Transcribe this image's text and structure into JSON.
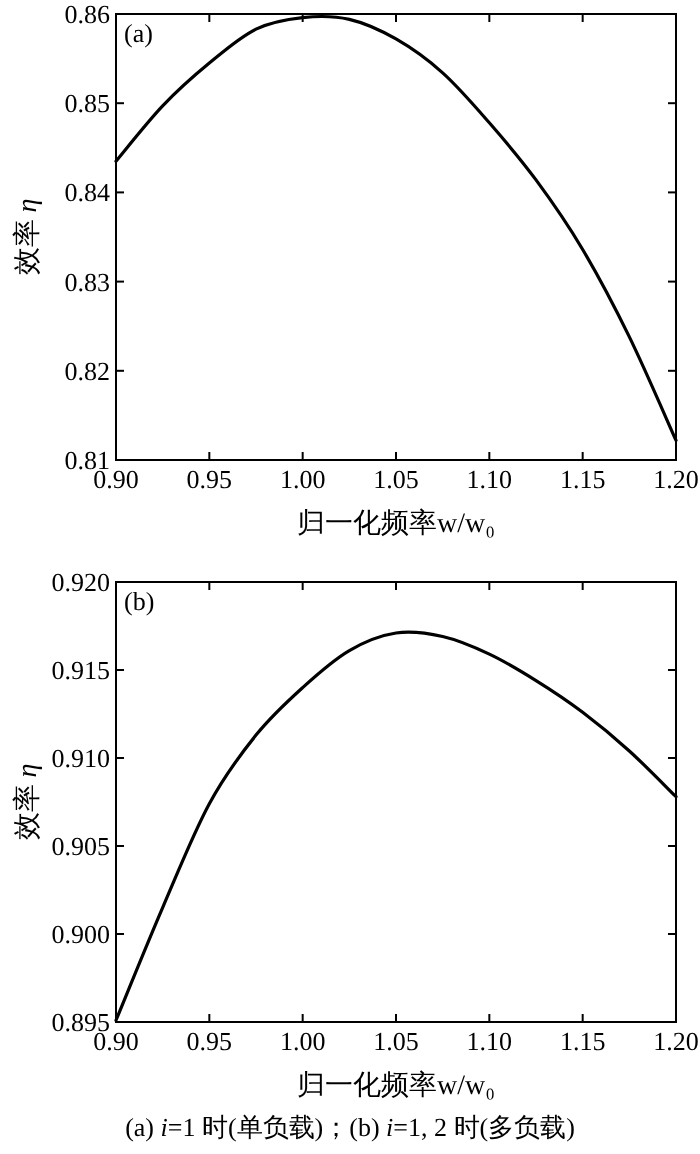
{
  "chart_data": [
    {
      "type": "line",
      "xlabel": "归一化频率w/w₀",
      "ylabel": "效率 *η*",
      "color": "#000000",
      "annotations": [
        "(a)"
      ],
      "x": [
        0.9,
        0.925,
        0.95,
        0.975,
        1.0,
        1.025,
        1.05,
        1.075,
        1.1,
        1.125,
        1.15,
        1.175,
        1.2
      ],
      "values": [
        0.8435,
        0.8497,
        0.8545,
        0.8583,
        0.8596,
        0.8594,
        0.8572,
        0.8534,
        0.8478,
        0.8414,
        0.8336,
        0.8238,
        0.8122
      ],
      "xlim": [
        0.9,
        1.2
      ],
      "ylim": [
        0.81,
        0.86
      ],
      "xticks": [
        {
          "value": 0.9,
          "label": "0.90"
        },
        {
          "value": 0.95,
          "label": "0.95"
        },
        {
          "value": 1.0,
          "label": "1.00"
        },
        {
          "value": 1.05,
          "label": "1.05"
        },
        {
          "value": 1.1,
          "label": "1.10"
        },
        {
          "value": 1.15,
          "label": "1.15"
        },
        {
          "value": 1.2,
          "label": "1.20"
        }
      ],
      "yticks": [
        0.81,
        0.82,
        0.83,
        0.84,
        0.85,
        0.86
      ]
    },
    {
      "type": "line",
      "xlabel": "归一化频率w/w₀",
      "ylabel": "效率 *η*",
      "color": "#000000",
      "annotations": [
        "(b)",
        "(a) *i*=1 时(单负载)；(b) *i*=1, 2 时(多负载)"
      ],
      "x": [
        0.9,
        0.925,
        0.95,
        0.975,
        1.0,
        1.025,
        1.05,
        1.075,
        1.1,
        1.125,
        1.15,
        1.175,
        1.2
      ],
      "values": [
        0.8951,
        0.9015,
        0.9074,
        0.9113,
        0.914,
        0.9161,
        0.9171,
        0.9169,
        0.9159,
        0.9144,
        0.9126,
        0.9104,
        0.9078
      ],
      "xlim": [
        0.9,
        1.2
      ],
      "ylim": [
        0.895,
        0.92
      ],
      "xticks": [
        {
          "value": 0.9,
          "label": "0.90"
        },
        {
          "value": 0.95,
          "label": "0.95"
        },
        {
          "value": 1.0,
          "label": "1.00"
        },
        {
          "value": 1.05,
          "label": "1.05"
        },
        {
          "value": 1.1,
          "label": "1.10"
        },
        {
          "value": 1.15,
          "label": "1.15"
        },
        {
          "value": 1.2,
          "label": "1.20"
        }
      ],
      "yticks": [
        {
          "value": 0.895,
          "label": "0.895"
        },
        {
          "value": 0.9,
          "label": "0.900"
        },
        {
          "value": 0.905,
          "label": "0.905"
        },
        {
          "value": 0.91,
          "label": "0.910"
        },
        {
          "value": 0.915,
          "label": "0.915"
        },
        {
          "value": 0.92,
          "label": "0.920"
        }
      ]
    }
  ]
}
